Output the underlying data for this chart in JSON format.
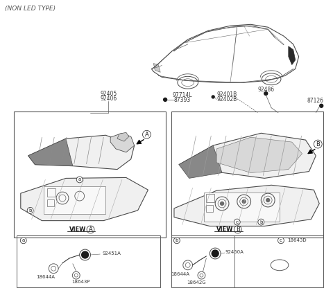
{
  "title": "(NON LED TYPE)",
  "bg_color": "#ffffff",
  "line_color": "#4a4a4a",
  "label_color": "#3a3a3a",
  "labels": {
    "l1": "92405",
    "l2": "92406",
    "l3": "97714L",
    "l4": "87393",
    "l5": "92401B",
    "l6": "92402B",
    "l7": "92486",
    "l8": "87126",
    "view_a": "VIEW",
    "view_b": "VIEW",
    "va_circle": "A",
    "vb_circle": "B",
    "a_circ": "a",
    "b_circ": "b",
    "c_circ": "c",
    "sub_a_p1": "92451A",
    "sub_a_p2": "18644A",
    "sub_a_p3": "18643P",
    "sub_b_p1": "92450A",
    "sub_b_p2": "18644A",
    "sub_b_p3": "18642G",
    "sub_b_p4": "18643D"
  },
  "figsize": [
    4.8,
    4.26
  ],
  "dpi": 100
}
